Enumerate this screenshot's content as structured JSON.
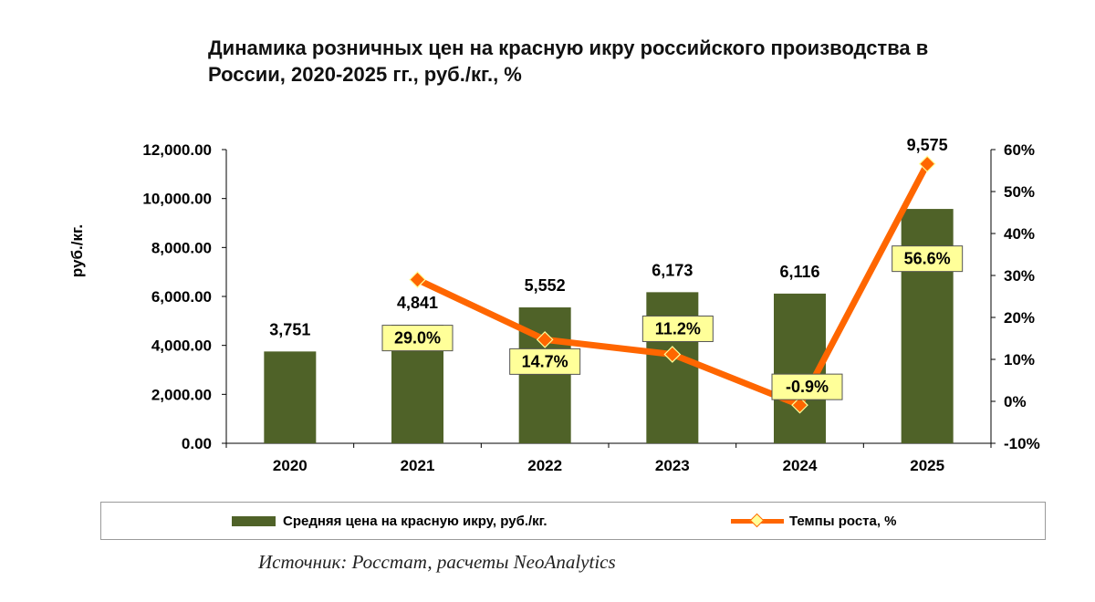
{
  "title_line1": "Динамика розничных цен на красную икру российского производства в",
  "title_line2": "России, 2020-2025 гг., руб./кг., %",
  "source": "Источник: Росстат, расчеты NeoAnalytics",
  "colors": {
    "bar": "#4f6228",
    "line": "#ff6600",
    "marker_fill": "#ffff99",
    "label_box": "#ffff99"
  },
  "chart_data": {
    "type": "bar",
    "categories": [
      "2020",
      "2021",
      "2022",
      "2023",
      "2024",
      "2025"
    ],
    "ylabel": "руб./кг.",
    "ylim": [
      0,
      12000
    ],
    "y_ticks": [
      "0.00",
      "2,000.00",
      "4,000.00",
      "6,000.00",
      "8,000.00",
      "10,000.00",
      "12,000.00"
    ],
    "y2lim": [
      -10,
      60
    ],
    "y2_ticks": [
      "-10%",
      "0%",
      "10%",
      "20%",
      "30%",
      "40%",
      "50%",
      "60%"
    ],
    "series": [
      {
        "name": "Средняя цена на красную икру, руб./кг.",
        "type": "bar",
        "axis": "left",
        "values": [
          3751,
          4841,
          5552,
          6173,
          6116,
          9575
        ],
        "labels": [
          "3,751",
          "4,841",
          "5,552",
          "6,173",
          "6,116",
          "9,575"
        ]
      },
      {
        "name": "Темпы роста, %",
        "type": "line",
        "axis": "right",
        "values": [
          null,
          29.0,
          14.7,
          11.2,
          -0.9,
          56.6
        ],
        "labels": [
          "",
          "29.0%",
          "14.7%",
          "11.2%",
          "-0.9%",
          "56.6%"
        ]
      }
    ],
    "legend_position": "bottom"
  }
}
